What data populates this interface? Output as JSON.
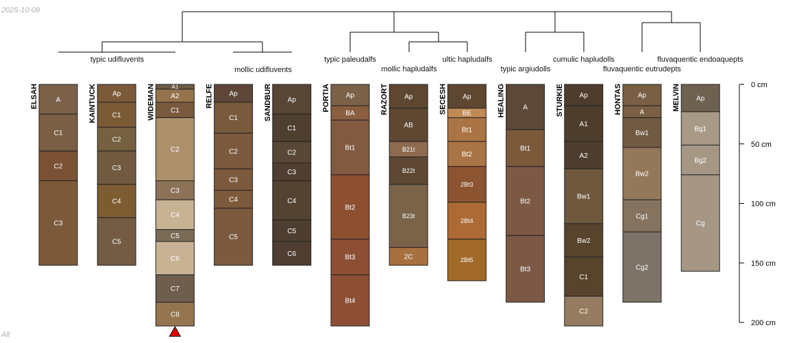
{
  "corner_date": "2025-10-08",
  "corner_footer": "All",
  "chart_data": {
    "type": "soil-profile-sketch",
    "depth_unit": "cm",
    "y_axis": {
      "ticks": [
        0,
        50,
        100,
        150,
        200
      ],
      "labels": [
        "0 cm",
        "50 cm",
        "100 cm",
        "150 cm",
        "200 cm"
      ],
      "range": [
        0,
        200
      ]
    },
    "dendrogram_groups": [
      "typic udifluvents",
      "mollic udifluvents",
      "typic paleudalfs",
      "mollic hapludalfs",
      "ultic hapludalfs",
      "typic argiudolls",
      "cumulic hapludolls",
      "fluvaquentic eutrudepts",
      "fluvaquentic endoaquepts"
    ],
    "profiles": [
      {
        "name": "ELSAH",
        "horizons": [
          {
            "name": "A",
            "top": 0,
            "bottom": 25,
            "color": "#7a6148"
          },
          {
            "name": "C1",
            "top": 25,
            "bottom": 56,
            "color": "#7a5f44"
          },
          {
            "name": "C2",
            "top": 56,
            "bottom": 81,
            "color": "#7a5135"
          },
          {
            "name": "C3",
            "top": 81,
            "bottom": 152,
            "color": "#7b5a3c"
          }
        ]
      },
      {
        "name": "KAINTUCK",
        "horizons": [
          {
            "name": "Ap",
            "top": 0,
            "bottom": 15,
            "color": "#7b5a39"
          },
          {
            "name": "C1",
            "top": 15,
            "bottom": 36,
            "color": "#7b5a36"
          },
          {
            "name": "C2",
            "top": 36,
            "bottom": 56,
            "color": "#75603f"
          },
          {
            "name": "C3",
            "top": 56,
            "bottom": 84,
            "color": "#715a40"
          },
          {
            "name": "C4",
            "top": 84,
            "bottom": 112,
            "color": "#7e5c32"
          },
          {
            "name": "C5",
            "top": 112,
            "bottom": 152,
            "color": "#735c43"
          }
        ]
      },
      {
        "name": "WIDEMAN",
        "horizons": [
          {
            "name": "A1",
            "top": 0,
            "bottom": 4,
            "color": "#6e5a45"
          },
          {
            "name": "A2",
            "top": 4,
            "bottom": 15,
            "color": "#96734c"
          },
          {
            "name": "C1",
            "top": 15,
            "bottom": 28,
            "color": "#7a5a3c"
          },
          {
            "name": "C2",
            "top": 28,
            "bottom": 81,
            "color": "#ad906c"
          },
          {
            "name": "C3",
            "top": 81,
            "bottom": 97,
            "color": "#8c7358"
          },
          {
            "name": "C4",
            "top": 97,
            "bottom": 122,
            "color": "#c8b294"
          },
          {
            "name": "C5",
            "top": 122,
            "bottom": 132,
            "color": "#7a6b57"
          },
          {
            "name": "C6",
            "top": 132,
            "bottom": 160,
            "color": "#c9b294"
          },
          {
            "name": "C7",
            "top": 160,
            "bottom": 183,
            "color": "#6f5d4d"
          },
          {
            "name": "C8",
            "top": 183,
            "bottom": 203,
            "color": "#94754f"
          }
        ]
      },
      {
        "name": "RELFE",
        "horizons": [
          {
            "name": "Ap",
            "top": 0,
            "bottom": 15,
            "color": "#5e4739"
          },
          {
            "name": "C1",
            "top": 15,
            "bottom": 41,
            "color": "#7a5a3c"
          },
          {
            "name": "C2",
            "top": 41,
            "bottom": 71,
            "color": "#7c5a3e"
          },
          {
            "name": "C3",
            "top": 71,
            "bottom": 89,
            "color": "#7c5a3e"
          },
          {
            "name": "C4",
            "top": 89,
            "bottom": 104,
            "color": "#7d5a3b"
          },
          {
            "name": "C5",
            "top": 104,
            "bottom": 152,
            "color": "#7c5a3e"
          }
        ]
      },
      {
        "name": "SANDBUR",
        "horizons": [
          {
            "name": "Ap",
            "top": 0,
            "bottom": 25,
            "color": "#574535"
          },
          {
            "name": "C1",
            "top": 25,
            "bottom": 48,
            "color": "#4f3f31"
          },
          {
            "name": "C2",
            "top": 48,
            "bottom": 66,
            "color": "#584736"
          },
          {
            "name": "C3",
            "top": 66,
            "bottom": 81,
            "color": "#4f3e31"
          },
          {
            "name": "C4",
            "top": 81,
            "bottom": 114,
            "color": "#544332"
          },
          {
            "name": "C5",
            "top": 114,
            "bottom": 132,
            "color": "#4e3e31"
          },
          {
            "name": "C6",
            "top": 132,
            "bottom": 152,
            "color": "#4f3e31"
          }
        ]
      },
      {
        "name": "PORTIA",
        "horizons": [
          {
            "name": "Ap",
            "top": 0,
            "bottom": 18,
            "color": "#7a6148"
          },
          {
            "name": "BA",
            "top": 18,
            "bottom": 30,
            "color": "#8b5e40"
          },
          {
            "name": "Bt1",
            "top": 30,
            "bottom": 76,
            "color": "#825a40"
          },
          {
            "name": "Bt2",
            "top": 76,
            "bottom": 130,
            "color": "#8c5030"
          },
          {
            "name": "Bt3",
            "top": 130,
            "bottom": 160,
            "color": "#8c4f35"
          },
          {
            "name": "Bt4",
            "top": 160,
            "bottom": 203,
            "color": "#8c4f35"
          }
        ]
      },
      {
        "name": "RAZORT",
        "horizons": [
          {
            "name": "Ap",
            "top": 0,
            "bottom": 20,
            "color": "#5e4730"
          },
          {
            "name": "AB",
            "top": 20,
            "bottom": 48,
            "color": "#5e4832"
          },
          {
            "name": "B21t",
            "top": 48,
            "bottom": 61,
            "color": "#8e6a4e"
          },
          {
            "name": "B22t",
            "top": 61,
            "bottom": 84,
            "color": "#5e4833"
          },
          {
            "name": "B23t",
            "top": 84,
            "bottom": 137,
            "color": "#7a6348"
          },
          {
            "name": "2C",
            "top": 137,
            "bottom": 152,
            "color": "#a8703f"
          }
        ]
      },
      {
        "name": "SECESH",
        "horizons": [
          {
            "name": "Ap",
            "top": 0,
            "bottom": 20,
            "color": "#5e4730"
          },
          {
            "name": "BE",
            "top": 20,
            "bottom": 28,
            "color": "#bf8a54"
          },
          {
            "name": "Bt1",
            "top": 28,
            "bottom": 48,
            "color": "#aa7445"
          },
          {
            "name": "Bt2",
            "top": 48,
            "bottom": 69,
            "color": "#a97446"
          },
          {
            "name": "2Bt3",
            "top": 69,
            "bottom": 99,
            "color": "#8d5431"
          },
          {
            "name": "2Bt4",
            "top": 99,
            "bottom": 130,
            "color": "#ad6a34"
          },
          {
            "name": "2Bt5",
            "top": 130,
            "bottom": 165,
            "color": "#a16a28"
          }
        ]
      },
      {
        "name": "HEALING",
        "horizons": [
          {
            "name": "A",
            "top": 0,
            "bottom": 38,
            "color": "#5e4839"
          },
          {
            "name": "Bt1",
            "top": 38,
            "bottom": 69,
            "color": "#7b5a3c"
          },
          {
            "name": "Bt2",
            "top": 69,
            "bottom": 127,
            "color": "#7c5944"
          },
          {
            "name": "Bt3",
            "top": 127,
            "bottom": 183,
            "color": "#7c5944"
          }
        ]
      },
      {
        "name": "STURKIE",
        "horizons": [
          {
            "name": "Ap",
            "top": 0,
            "bottom": 18,
            "color": "#4e3d2d"
          },
          {
            "name": "A1",
            "top": 18,
            "bottom": 48,
            "color": "#4e3d2d"
          },
          {
            "name": "A2",
            "top": 48,
            "bottom": 71,
            "color": "#4e3e2f"
          },
          {
            "name": "Bw1",
            "top": 71,
            "bottom": 117,
            "color": "#6e593e"
          },
          {
            "name": "Bw2",
            "top": 117,
            "bottom": 145,
            "color": "#58432c"
          },
          {
            "name": "C1",
            "top": 145,
            "bottom": 178,
            "color": "#58432c"
          },
          {
            "name": "C2",
            "top": 178,
            "bottom": 203,
            "color": "#957b5f"
          }
        ]
      },
      {
        "name": "HONTAS",
        "horizons": [
          {
            "name": "Ap",
            "top": 0,
            "bottom": 18,
            "color": "#7a5f44"
          },
          {
            "name": "A",
            "top": 18,
            "bottom": 28,
            "color": "#7a5f44"
          },
          {
            "name": "Bw1",
            "top": 28,
            "bottom": 53,
            "color": "#705a41"
          },
          {
            "name": "Bw2",
            "top": 53,
            "bottom": 97,
            "color": "#94785a"
          },
          {
            "name": "Cg1",
            "top": 97,
            "bottom": 124,
            "color": "#857360"
          },
          {
            "name": "Cg2",
            "top": 124,
            "bottom": 183,
            "color": "#7d7368"
          }
        ]
      },
      {
        "name": "MELVIN",
        "horizons": [
          {
            "name": "Ap",
            "top": 0,
            "bottom": 23,
            "color": "#6f6150"
          },
          {
            "name": "Bg1",
            "top": 23,
            "bottom": 51,
            "color": "#a89a86"
          },
          {
            "name": "Bg2",
            "top": 51,
            "bottom": 76,
            "color": "#a59784"
          },
          {
            "name": "Cg",
            "top": 76,
            "bottom": 157,
            "color": "#a59784"
          }
        ]
      }
    ],
    "markers": [
      {
        "profile": "WIDEMAN",
        "depth": 203,
        "shape": "triangle",
        "color": "#e00000"
      }
    ]
  }
}
